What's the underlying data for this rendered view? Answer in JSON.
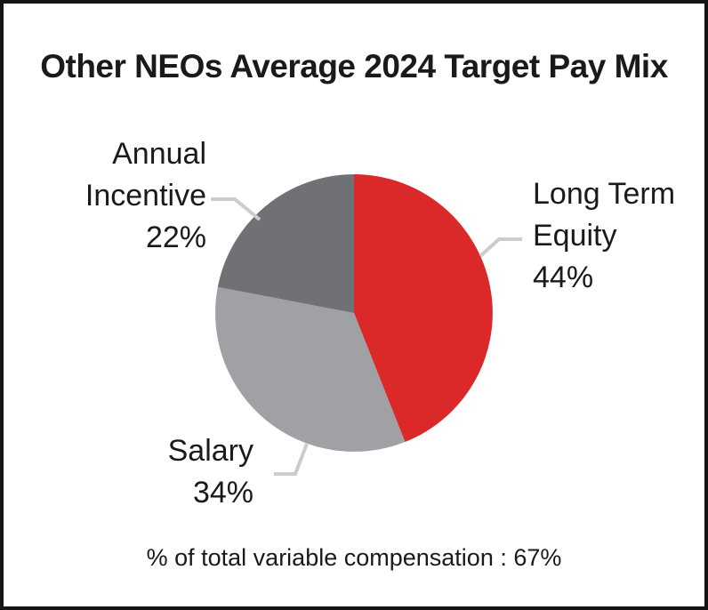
{
  "title": "Other NEOs Average 2024 Target Pay Mix",
  "footer": "% of total variable compensation : 67%",
  "labels": {
    "long_term_equity": "Long Term\nEquity\n44%",
    "salary": "Salary\n34%",
    "annual_incentive": "Annual\nIncentive\n22%"
  },
  "chart_data": {
    "type": "pie",
    "title": "Other NEOs Average 2024 Target Pay Mix",
    "slices": [
      {
        "id": "long-term-equity",
        "label": "Long Term Equity",
        "value": 44,
        "color": "#DB2828"
      },
      {
        "id": "salary",
        "label": "Salary",
        "value": 34,
        "color": "#9FA1A4"
      },
      {
        "id": "annual-incentive",
        "label": "Annual Incentive",
        "value": 22,
        "color": "#707174"
      }
    ],
    "start_angle_deg": -90,
    "direction": "clockwise",
    "leader_line_color": "#CCCCCC",
    "annotation": "% of total variable compensation : 67%",
    "total_variable_compensation_pct": 67
  }
}
